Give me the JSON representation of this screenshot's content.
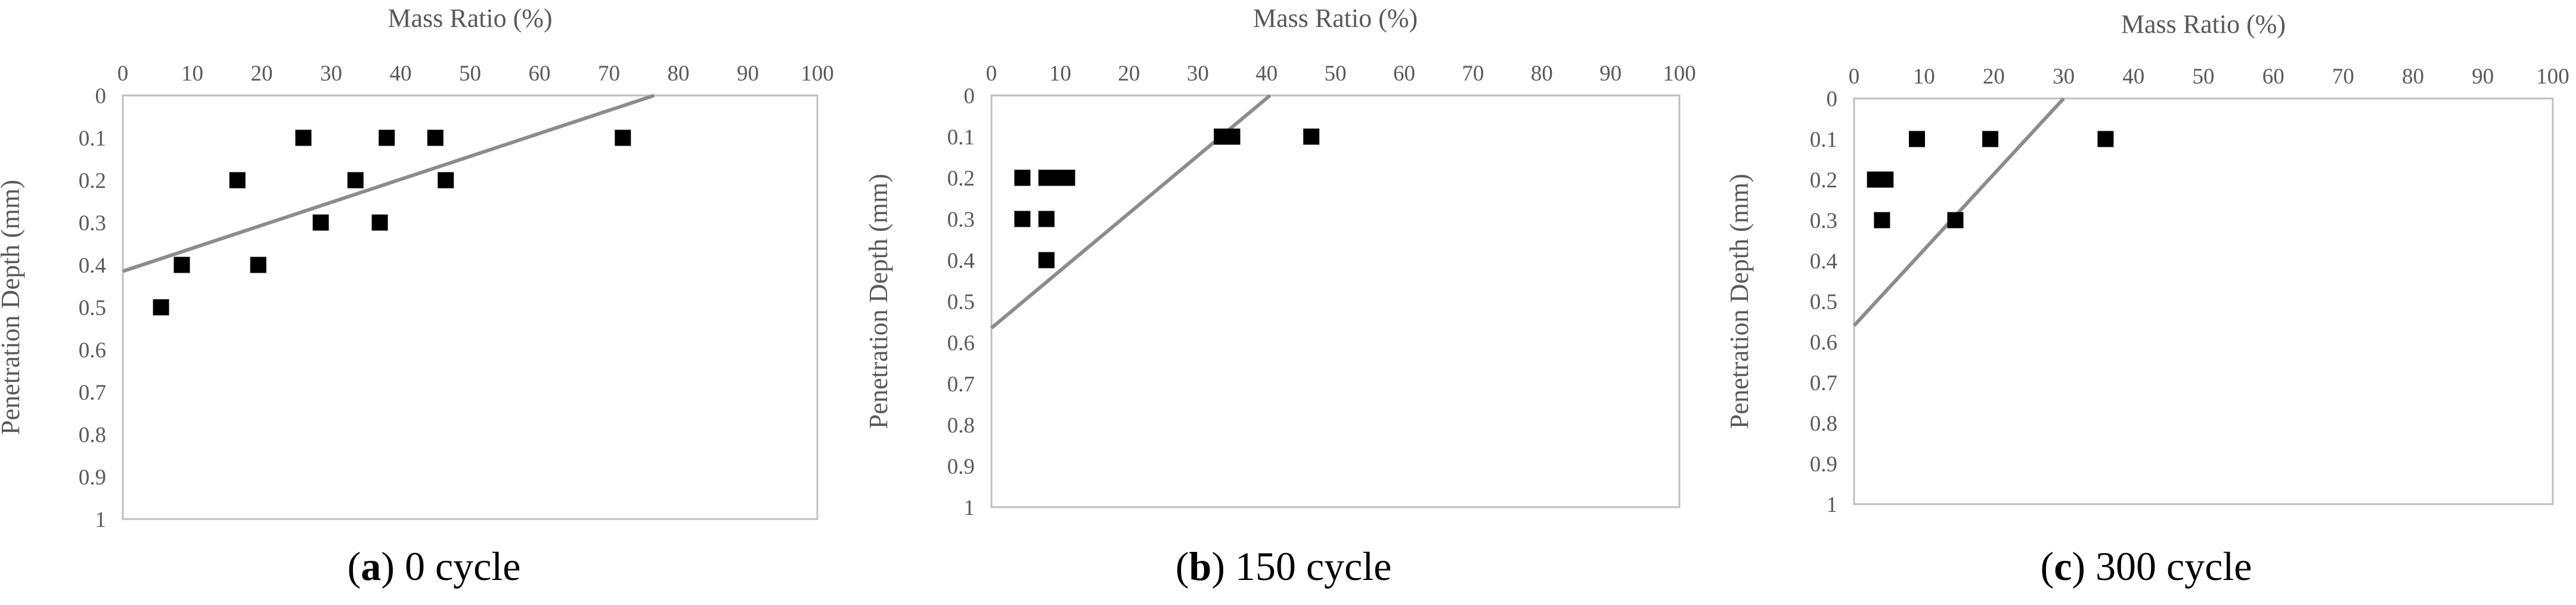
{
  "colors": {
    "fit_line": "#8c8c8c",
    "marker": "#000000",
    "frame": "#bfbfbf",
    "tick_text": "#595959"
  },
  "chart_data": [
    {
      "type": "scatter",
      "panel_letter": "a",
      "panel_text": " 0 cycle",
      "xlabel": "Mass Ratio (%)",
      "ylabel": "Penetration Depth (mm)",
      "xlim": [
        0,
        100
      ],
      "ylim": [
        0,
        1
      ],
      "x_ticks": [
        "0",
        "10",
        "20",
        "30",
        "40",
        "50",
        "60",
        "70",
        "80",
        "90",
        "100"
      ],
      "y_ticks": [
        "0",
        "0.1",
        "0.2",
        "0.3",
        "0.4",
        "0.5",
        "0.6",
        "0.7",
        "0.8",
        "0.9",
        "1"
      ],
      "y_axis_inverted": true,
      "x_axis_position": "top",
      "points": [
        [
          5.5,
          0.5
        ],
        [
          8.5,
          0.4
        ],
        [
          16.5,
          0.2
        ],
        [
          19.5,
          0.4
        ],
        [
          26,
          0.1
        ],
        [
          28.5,
          0.3
        ],
        [
          33.5,
          0.2
        ],
        [
          37,
          0.3
        ],
        [
          38,
          0.1
        ],
        [
          45,
          0.1
        ],
        [
          46.5,
          0.2
        ],
        [
          72,
          0.1
        ]
      ],
      "trendline": {
        "x": [
          0,
          76.5
        ],
        "y": [
          0.415,
          0
        ]
      }
    },
    {
      "type": "scatter",
      "panel_letter": "b",
      "panel_text": " 150 cycle",
      "xlabel": "Mass Ratio (%)",
      "ylabel": "Penetration Depth (mm)",
      "xlim": [
        0,
        100
      ],
      "ylim": [
        0,
        1
      ],
      "x_ticks": [
        "0",
        "10",
        "20",
        "30",
        "40",
        "50",
        "60",
        "70",
        "80",
        "90",
        "100"
      ],
      "y_ticks": [
        "0",
        "0.1",
        "0.2",
        "0.3",
        "0.4",
        "0.5",
        "0.6",
        "0.7",
        "0.8",
        "0.9",
        "1"
      ],
      "y_axis_inverted": true,
      "x_axis_position": "top",
      "points": [
        [
          4.5,
          0.2
        ],
        [
          4.5,
          0.3
        ],
        [
          8,
          0.2
        ],
        [
          8,
          0.3
        ],
        [
          8,
          0.4
        ],
        [
          9.5,
          0.2
        ],
        [
          11,
          0.2
        ],
        [
          33.5,
          0.1
        ],
        [
          35,
          0.1
        ],
        [
          46.5,
          0.1
        ]
      ],
      "trendline": {
        "x": [
          0,
          40.5
        ],
        "y": [
          0.565,
          0
        ]
      }
    },
    {
      "type": "scatter",
      "panel_letter": "c",
      "panel_text": " 300 cycle",
      "xlabel": "Mass Ratio (%)",
      "ylabel": "Penetration Depth (mm)",
      "xlim": [
        0,
        100
      ],
      "ylim": [
        0,
        1
      ],
      "x_ticks": [
        "0",
        "10",
        "20",
        "30",
        "40",
        "50",
        "60",
        "70",
        "80",
        "90",
        "100"
      ],
      "y_ticks": [
        "0",
        "0.1",
        "0.2",
        "0.3",
        "0.4",
        "0.5",
        "0.6",
        "0.7",
        "0.8",
        "0.9",
        "1"
      ],
      "y_axis_inverted": true,
      "x_axis_position": "top",
      "points": [
        [
          3,
          0.2
        ],
        [
          4,
          0.3
        ],
        [
          4.5,
          0.2
        ],
        [
          9,
          0.1
        ],
        [
          14.5,
          0.3
        ],
        [
          19.5,
          0.1
        ],
        [
          36,
          0.1
        ]
      ],
      "trendline": {
        "x": [
          0,
          30
        ],
        "y": [
          0.56,
          0
        ]
      }
    }
  ]
}
